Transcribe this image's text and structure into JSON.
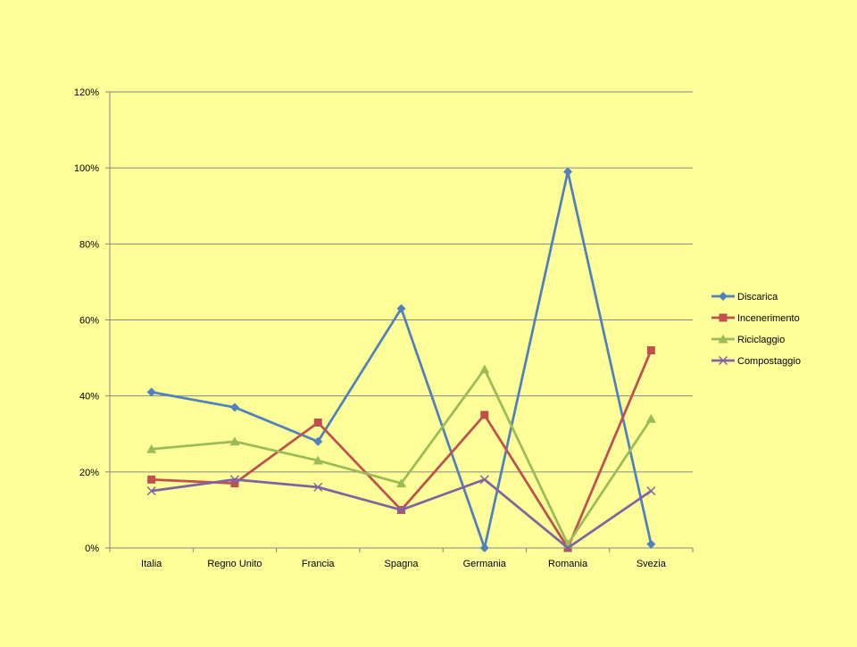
{
  "chart_data": {
    "type": "line",
    "title": "",
    "xlabel": "",
    "ylabel": "",
    "categories": [
      "Italia",
      "Regno Unito",
      "Francia",
      "Spagna",
      "Germania",
      "Romania",
      "Svezia"
    ],
    "y_ticks": [
      "0%",
      "20%",
      "40%",
      "60%",
      "80%",
      "100%",
      "120%"
    ],
    "ylim": [
      0,
      120
    ],
    "grid": true,
    "legend_position": "right",
    "series": [
      {
        "name": "Discarica",
        "color": "#4F81BD",
        "marker": "diamond",
        "values": [
          41,
          37,
          28,
          63,
          0,
          99,
          1
        ]
      },
      {
        "name": "Incenerimento",
        "color": "#C0504D",
        "marker": "square",
        "values": [
          18,
          17,
          33,
          10,
          35,
          0,
          52
        ]
      },
      {
        "name": "Riciclaggio",
        "color": "#9BBB59",
        "marker": "triangle",
        "values": [
          26,
          28,
          23,
          17,
          47,
          1,
          34
        ]
      },
      {
        "name": "Compostaggio",
        "color": "#8064A2",
        "marker": "x",
        "values": [
          15,
          18,
          16,
          10,
          18,
          0,
          15
        ]
      }
    ]
  }
}
